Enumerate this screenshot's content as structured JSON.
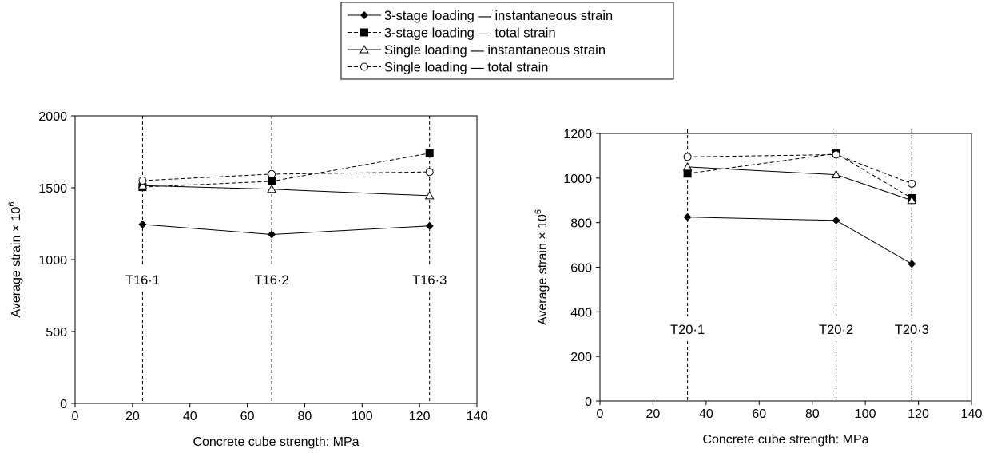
{
  "legend": {
    "entries": [
      {
        "label": "3-stage loading — instantaneous strain",
        "marker": "diamond",
        "dash": "solid"
      },
      {
        "label": "3-stage loading — total strain",
        "marker": "square",
        "dash": "dashed"
      },
      {
        "label": "Single loading — instantaneous strain",
        "marker": "triangle",
        "dash": "solid"
      },
      {
        "label": "Single loading — total strain",
        "marker": "circle",
        "dash": "dashed"
      }
    ]
  },
  "chart_data": [
    {
      "type": "line",
      "xlabel": "Concrete cube strength: MPa",
      "ylabel": "Average strain × 10",
      "ylabel_sup": "6",
      "xlim": [
        0,
        140
      ],
      "ylim": [
        0,
        2000
      ],
      "xticks": [
        0,
        20,
        40,
        60,
        80,
        100,
        120,
        140
      ],
      "yticks": [
        0,
        500,
        1000,
        1500,
        2000
      ],
      "reference_lines": [
        {
          "x": 23.5,
          "label": "T16·1"
        },
        {
          "x": 68.5,
          "label": "T16·2"
        },
        {
          "x": 123.5,
          "label": "T16·3"
        }
      ],
      "series": [
        {
          "name": "3-stage loading — instantaneous strain",
          "x": [
            23.5,
            68.5,
            123.5
          ],
          "y": [
            1245,
            1175,
            1235
          ]
        },
        {
          "name": "3-stage loading — total strain",
          "x": [
            23.5,
            68.5,
            123.5
          ],
          "y": [
            1505,
            1545,
            1740
          ]
        },
        {
          "name": "Single loading — instantaneous strain",
          "x": [
            23.5,
            68.5,
            123.5
          ],
          "y": [
            1515,
            1490,
            1445
          ]
        },
        {
          "name": "Single loading — total strain",
          "x": [
            23.5,
            68.5,
            123.5
          ],
          "y": [
            1550,
            1595,
            1610
          ]
        }
      ]
    },
    {
      "type": "line",
      "xlabel": "Concrete cube strength: MPa",
      "ylabel": "Average strain × 10",
      "ylabel_sup": "6",
      "xlim": [
        0,
        140
      ],
      "ylim": [
        0,
        1200
      ],
      "xticks": [
        0,
        20,
        40,
        60,
        80,
        100,
        120,
        140
      ],
      "yticks": [
        0,
        200,
        400,
        600,
        800,
        1000,
        1200
      ],
      "reference_lines": [
        {
          "x": 33,
          "label": "T20·1"
        },
        {
          "x": 89,
          "label": "T20·2"
        },
        {
          "x": 117.5,
          "label": "T20·3"
        }
      ],
      "series": [
        {
          "name": "3-stage loading — instantaneous strain",
          "x": [
            33,
            89,
            117.5
          ],
          "y": [
            825,
            810,
            615
          ]
        },
        {
          "name": "3-stage loading — total strain",
          "x": [
            33,
            89,
            117.5
          ],
          "y": [
            1020,
            1110,
            910
          ]
        },
        {
          "name": "Single loading — instantaneous strain",
          "x": [
            33,
            89,
            117.5
          ],
          "y": [
            1050,
            1015,
            900
          ]
        },
        {
          "name": "Single loading — total strain",
          "x": [
            33,
            89,
            117.5
          ],
          "y": [
            1095,
            1105,
            975
          ]
        }
      ]
    }
  ]
}
